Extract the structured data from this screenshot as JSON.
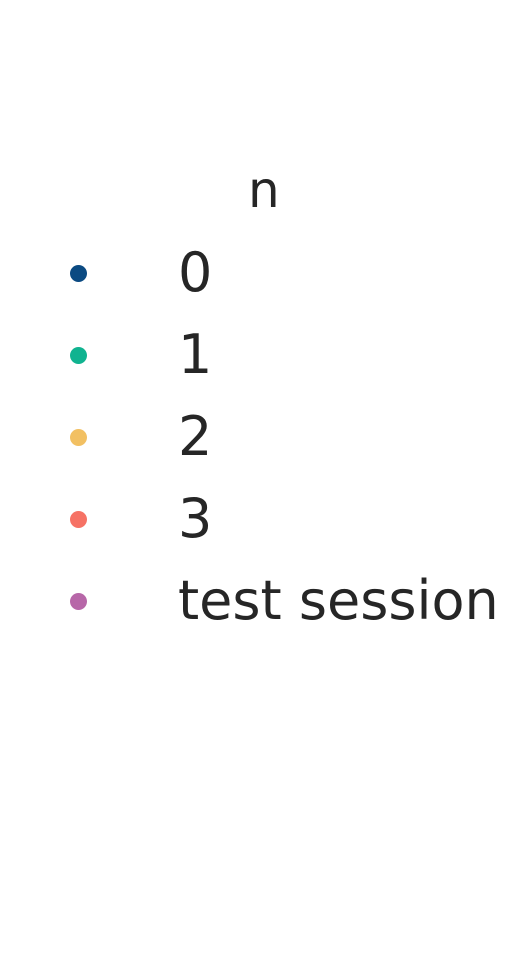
{
  "chart_data": {
    "type": "scatter",
    "legend": {
      "title": "n",
      "placement": "standalone",
      "entries": [
        {
          "label": "0",
          "color": "#0b4a82",
          "marker": "circle"
        },
        {
          "label": "1",
          "color": "#10b390",
          "marker": "circle"
        },
        {
          "label": "2",
          "color": "#f2c062",
          "marker": "circle"
        },
        {
          "label": "3",
          "color": "#f67265",
          "marker": "circle"
        },
        {
          "label": "test session",
          "color": "#b767a8",
          "marker": "circle"
        }
      ]
    }
  }
}
